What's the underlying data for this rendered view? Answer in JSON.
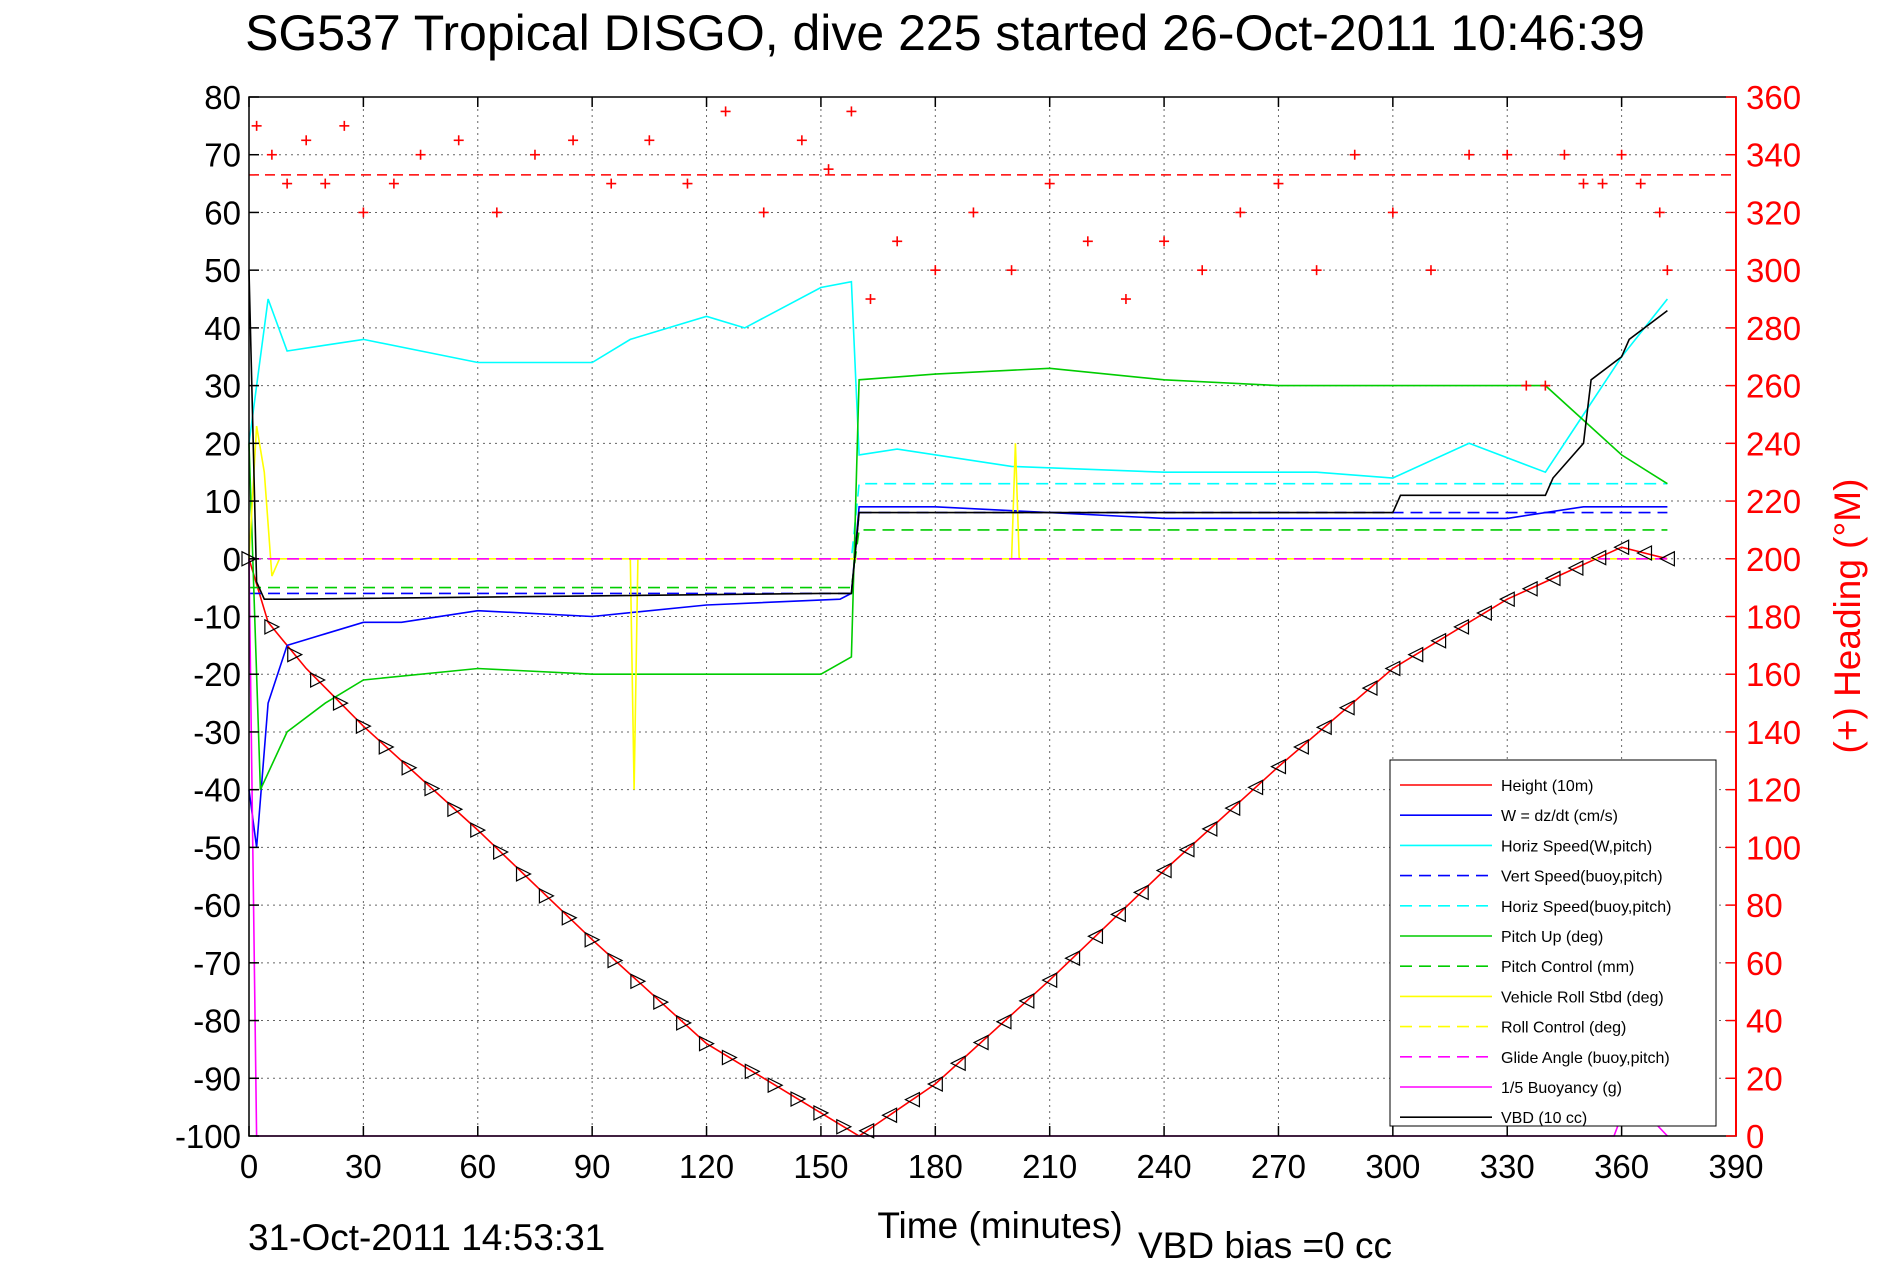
{
  "chart_data": {
    "type": "line",
    "title": "SG537 Tropical DISGO, dive 225 started 26-Oct-2011 10:46:39",
    "xlabel": "Time (minutes)",
    "ylabel_right": "(+) Heading (°M)",
    "footer_date": "31-Oct-2011 14:53:31",
    "footer_bias": "VBD bias =0 cc",
    "xlim": [
      0,
      390
    ],
    "ylim_left": [
      -100,
      80
    ],
    "ylim_right": [
      0,
      360
    ],
    "x_ticks": [
      0,
      30,
      60,
      90,
      120,
      150,
      180,
      210,
      240,
      270,
      300,
      330,
      360,
      390
    ],
    "y_ticks_left": [
      80,
      70,
      60,
      50,
      40,
      30,
      20,
      10,
      0,
      -10,
      -20,
      -30,
      -40,
      -50,
      -60,
      -70,
      -80,
      -90,
      -100
    ],
    "y_ticks_right": [
      360,
      340,
      320,
      300,
      280,
      260,
      240,
      220,
      200,
      180,
      160,
      140,
      120,
      100,
      80,
      60,
      40,
      20,
      0
    ],
    "grid": true,
    "legend_position": "bottom-right",
    "heading_reference": 333,
    "series": [
      {
        "name": "Height (10m)",
        "color": "#ff0000",
        "style": "solid",
        "axis": "left",
        "x": [
          0,
          5,
          15,
          30,
          60,
          90,
          120,
          150,
          160,
          180,
          210,
          240,
          270,
          300,
          330,
          360,
          372
        ],
        "y": [
          0,
          -11,
          -19,
          -29,
          -47,
          -66,
          -84,
          -96,
          -100,
          -91,
          -73,
          -54,
          -36,
          -19,
          -7,
          2,
          0
        ]
      },
      {
        "name": "W = dz/dt (cm/s)",
        "color": "#0000ff",
        "style": "solid",
        "axis": "left",
        "x": [
          0,
          2,
          5,
          10,
          20,
          30,
          40,
          60,
          90,
          120,
          155,
          158,
          160,
          180,
          210,
          240,
          270,
          300,
          330,
          350,
          372
        ],
        "y": [
          -40,
          -50,
          -25,
          -15,
          -13,
          -11,
          -11,
          -9,
          -10,
          -8,
          -7,
          -6,
          9,
          9,
          8,
          7,
          7,
          7,
          7,
          9,
          9
        ]
      },
      {
        "name": "Horiz Speed(W,pitch)",
        "color": "#00ffff",
        "style": "solid",
        "axis": "left",
        "x": [
          0,
          5,
          10,
          20,
          30,
          60,
          90,
          100,
          120,
          130,
          150,
          158,
          160,
          170,
          200,
          240,
          280,
          300,
          320,
          340,
          350,
          360,
          372
        ],
        "y": [
          20,
          45,
          36,
          37,
          38,
          34,
          34,
          38,
          42,
          40,
          47,
          48,
          18,
          19,
          16,
          15,
          15,
          14,
          20,
          15,
          25,
          35,
          45
        ]
      },
      {
        "name": "Vert Speed(buoy,pitch)",
        "color": "#0000ff",
        "style": "dashed",
        "axis": "left",
        "x": [
          0,
          5,
          158,
          160,
          372
        ],
        "y": [
          -6,
          -6,
          -6,
          8,
          8
        ]
      },
      {
        "name": "Horiz Speed(buoy,pitch)",
        "color": "#00ffff",
        "style": "dashed",
        "axis": "left",
        "x": [
          0,
          5,
          158,
          160,
          372
        ],
        "y": [
          0,
          0,
          0,
          13,
          13
        ]
      },
      {
        "name": "Pitch Up (deg)",
        "color": "#00cc00",
        "style": "solid",
        "axis": "left",
        "x": [
          0,
          3,
          10,
          20,
          30,
          60,
          90,
          120,
          150,
          158,
          160,
          180,
          210,
          240,
          270,
          300,
          330,
          340,
          360,
          372
        ],
        "y": [
          20,
          -40,
          -30,
          -25,
          -21,
          -19,
          -20,
          -20,
          -20,
          -17,
          31,
          32,
          33,
          31,
          30,
          30,
          30,
          30,
          18,
          13
        ]
      },
      {
        "name": "Pitch Control (mm)",
        "color": "#00cc00",
        "style": "dashed",
        "axis": "left",
        "x": [
          0,
          5,
          158,
          160,
          372
        ],
        "y": [
          -5,
          -5,
          -5,
          5,
          5
        ]
      },
      {
        "name": "Vehicle Roll Stbd (deg)",
        "color": "#ffff00",
        "style": "solid",
        "axis": "left",
        "x": [
          0,
          2,
          4,
          6,
          8,
          100,
          101,
          102,
          200,
          201,
          202,
          372
        ],
        "y": [
          0,
          23,
          15,
          -3,
          0,
          0,
          -40,
          0,
          0,
          20,
          0,
          0
        ]
      },
      {
        "name": "Roll Control (deg)",
        "color": "#ffff00",
        "style": "dashed",
        "axis": "left",
        "x": [
          0,
          372
        ],
        "y": [
          0,
          0
        ]
      },
      {
        "name": "Glide Angle (buoy,pitch)",
        "color": "#ff00ff",
        "style": "dashed",
        "axis": "left",
        "x": [
          0,
          372
        ],
        "y": [
          0,
          0
        ]
      },
      {
        "name": "1/5 Buoyancy (g)",
        "color": "#ff00ff",
        "style": "solid",
        "axis": "left",
        "x": [
          0,
          2,
          358,
          362,
          372
        ],
        "y": [
          0,
          -100,
          -100,
          -93,
          -100
        ]
      },
      {
        "name": "VBD (10 cc)",
        "color": "#000000",
        "style": "solid",
        "axis": "left",
        "x": [
          0,
          2,
          4,
          10,
          150,
          158,
          160,
          300,
          302,
          340,
          342,
          350,
          352,
          360,
          362,
          372
        ],
        "y": [
          50,
          -4,
          -7,
          -7,
          -6,
          -6,
          8,
          8,
          11,
          11,
          14,
          20,
          31,
          35,
          38,
          43
        ]
      }
    ],
    "heading": {
      "name": "(+) Heading (°M)",
      "color": "#ff0000",
      "marker": "+",
      "axis": "right",
      "x": [
        2,
        6,
        10,
        15,
        20,
        25,
        30,
        38,
        45,
        55,
        65,
        75,
        85,
        95,
        105,
        115,
        125,
        135,
        145,
        152,
        158,
        163,
        170,
        180,
        190,
        200,
        210,
        220,
        230,
        240,
        250,
        260,
        270,
        280,
        290,
        300,
        310,
        320,
        330,
        335,
        340,
        345,
        350,
        355,
        360,
        365,
        370,
        372
      ],
      "y": [
        350,
        340,
        330,
        345,
        330,
        350,
        320,
        330,
        340,
        345,
        320,
        340,
        345,
        330,
        345,
        330,
        355,
        320,
        345,
        335,
        355,
        290,
        310,
        300,
        320,
        300,
        330,
        310,
        290,
        310,
        300,
        320,
        330,
        300,
        340,
        320,
        300,
        340,
        340,
        260,
        260,
        340,
        330,
        330,
        340,
        330,
        320,
        300
      ]
    }
  }
}
